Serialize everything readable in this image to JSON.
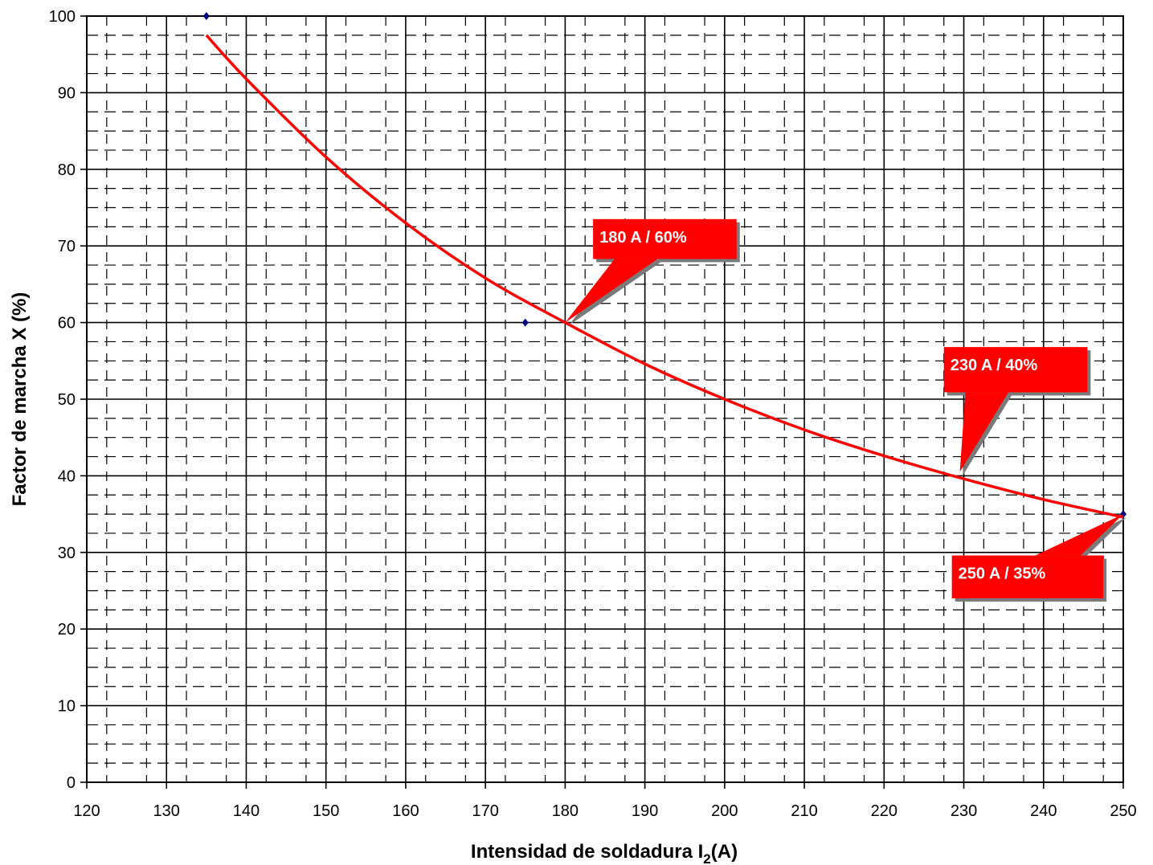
{
  "chart_data": {
    "type": "line",
    "title": "",
    "xlabel": "Intensidad de soldadura I",
    "xlabel_subscript": "2",
    "xlabel_suffix": "(A)",
    "ylabel": "Factor de marcha X (%)",
    "xlim": [
      120,
      250
    ],
    "ylim": [
      0,
      100
    ],
    "x_ticks": [
      120,
      130,
      140,
      150,
      160,
      170,
      180,
      190,
      200,
      210,
      220,
      230,
      240,
      250
    ],
    "y_ticks": [
      0,
      10,
      20,
      30,
      40,
      50,
      60,
      70,
      80,
      90,
      100
    ],
    "grid": true,
    "series": [
      {
        "kind": "markers",
        "color": "#00007f",
        "x": [
          135,
          175,
          250
        ],
        "y": [
          100,
          60,
          35
        ]
      },
      {
        "kind": "curve",
        "color": "#ff0000",
        "x": [
          135,
          140,
          150,
          160,
          170,
          180,
          190,
          200,
          210,
          220,
          230,
          240,
          250
        ],
        "y": [
          97.5,
          91.8,
          81.6,
          73.0,
          65.8,
          60.0,
          54.6,
          50.0,
          46.0,
          42.6,
          39.6,
          36.9,
          34.6
        ]
      }
    ],
    "annotations": [
      {
        "text": "180 A / 60%",
        "x": 180,
        "y": 60,
        "box_x": 183.5,
        "box_y": 68.3,
        "box_x2": 201.5,
        "box_y2": 73.5
      },
      {
        "text": "230 A / 40%",
        "x": 229.5,
        "y": 40.5,
        "box_x": 227.5,
        "box_y": 50.9,
        "box_x2": 245.5,
        "box_y2": 56.8
      },
      {
        "text": "250 A / 35%",
        "x": 250,
        "y": 35,
        "box_x": 228.5,
        "box_y": 24.0,
        "box_x2": 247.5,
        "box_y2": 29.6
      }
    ],
    "colors": {
      "curve": "#ff0000",
      "markers": "#00007f",
      "callout": "#ff0000",
      "grid": "#000000"
    }
  }
}
